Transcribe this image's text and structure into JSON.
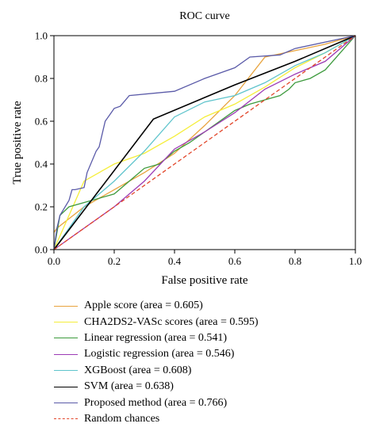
{
  "chart_data": {
    "type": "line",
    "title": "ROC curve",
    "xlabel": "False positive rate",
    "ylabel": "True positive rate",
    "xlim": [
      0,
      1
    ],
    "ylim": [
      0,
      1
    ],
    "x_ticks": [
      "0.0",
      "0.2",
      "0.4",
      "0.6",
      "0.8",
      "1.0"
    ],
    "y_ticks": [
      "0.0",
      "0.2",
      "0.4",
      "0.6",
      "0.8",
      "1.0"
    ],
    "grid": false,
    "legend_position": "below",
    "series": [
      {
        "name": "Apple score (area = 0.605)",
        "color": "#e8a33d",
        "dash": false,
        "x": [
          0,
          0.01,
          0.1,
          0.2,
          0.3,
          0.4,
          0.5,
          0.6,
          0.7,
          0.8,
          0.9,
          1.0
        ],
        "y": [
          0.08,
          0.1,
          0.2,
          0.28,
          0.36,
          0.45,
          0.58,
          0.72,
          0.9,
          0.93,
          0.96,
          1.0
        ]
      },
      {
        "name": "CHA2DS2-VASc scores (area = 0.595)",
        "color": "#f5ee3b",
        "dash": false,
        "x": [
          0,
          0.1,
          0.2,
          0.3,
          0.4,
          0.5,
          0.6,
          0.7,
          0.8,
          0.9,
          1.0
        ],
        "y": [
          0,
          0.32,
          0.4,
          0.45,
          0.53,
          0.62,
          0.68,
          0.76,
          0.85,
          0.92,
          1.0
        ]
      },
      {
        "name": "Linear regression (area = 0.541)",
        "color": "#3d9a3d",
        "dash": false,
        "x": [
          0,
          0.02,
          0.05,
          0.1,
          0.15,
          0.2,
          0.25,
          0.3,
          0.35,
          0.4,
          0.45,
          0.5,
          0.55,
          0.6,
          0.65,
          0.7,
          0.75,
          0.78,
          0.8,
          0.85,
          0.9,
          0.95,
          1.0
        ],
        "y": [
          0,
          0.16,
          0.2,
          0.22,
          0.24,
          0.26,
          0.32,
          0.38,
          0.4,
          0.46,
          0.5,
          0.55,
          0.6,
          0.65,
          0.68,
          0.7,
          0.72,
          0.75,
          0.78,
          0.8,
          0.84,
          0.92,
          1.0
        ]
      },
      {
        "name": "Logistic regression (area = 0.546)",
        "color": "#9c3bb5",
        "dash": false,
        "x": [
          0,
          0.1,
          0.2,
          0.3,
          0.4,
          0.5,
          0.6,
          0.7,
          0.8,
          0.9,
          1.0
        ],
        "y": [
          0,
          0.1,
          0.2,
          0.32,
          0.47,
          0.55,
          0.64,
          0.75,
          0.82,
          0.88,
          1.0
        ]
      },
      {
        "name": "XGBoost (area = 0.608)",
        "color": "#5fc4cc",
        "dash": false,
        "x": [
          0,
          0.1,
          0.2,
          0.3,
          0.4,
          0.5,
          0.6,
          0.7,
          0.8,
          0.9,
          1.0
        ],
        "y": [
          0,
          0.2,
          0.32,
          0.46,
          0.62,
          0.69,
          0.72,
          0.78,
          0.86,
          0.92,
          1.0
        ]
      },
      {
        "name": "SVM (area = 0.638)",
        "color": "#000000",
        "dash": false,
        "x": [
          0,
          0.33,
          0.6,
          0.8,
          1.0
        ],
        "y": [
          0,
          0.61,
          0.77,
          0.88,
          1.0
        ]
      },
      {
        "name": "Proposed method (area = 0.766)",
        "color": "#5a5aa8",
        "dash": false,
        "x": [
          0,
          0.01,
          0.02,
          0.05,
          0.06,
          0.07,
          0.1,
          0.11,
          0.14,
          0.15,
          0.17,
          0.19,
          0.2,
          0.22,
          0.25,
          0.4,
          0.5,
          0.6,
          0.65,
          0.75,
          0.8,
          1.0
        ],
        "y": [
          0,
          0.1,
          0.16,
          0.23,
          0.28,
          0.28,
          0.29,
          0.36,
          0.46,
          0.48,
          0.6,
          0.64,
          0.66,
          0.67,
          0.72,
          0.74,
          0.8,
          0.85,
          0.9,
          0.91,
          0.94,
          1.0
        ]
      },
      {
        "name": "Random chances",
        "color": "#e2462a",
        "dash": true,
        "x": [
          0,
          1.0
        ],
        "y": [
          0,
          1.0
        ]
      }
    ]
  }
}
